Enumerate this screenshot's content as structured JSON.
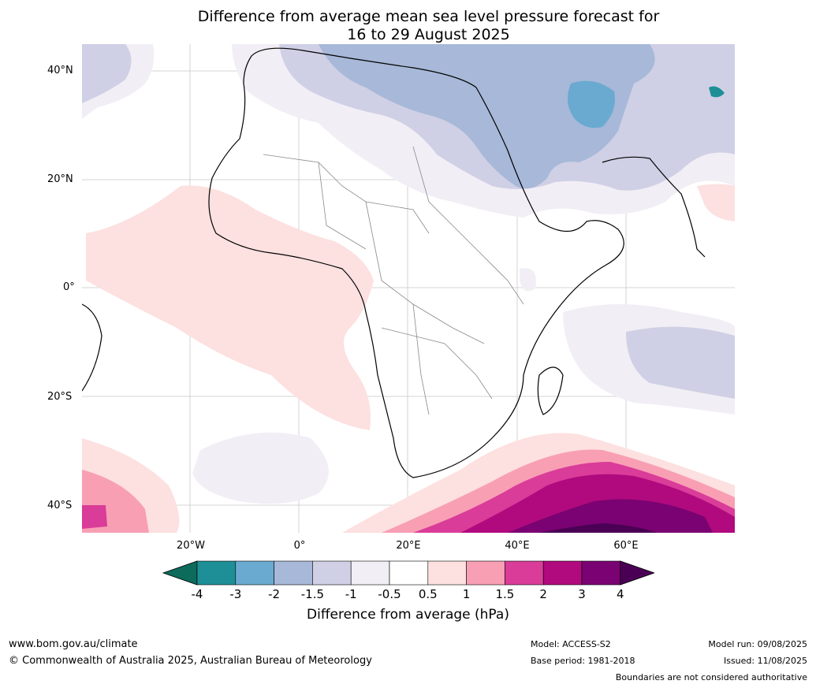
{
  "title_line1": "Difference from average mean sea level pressure forecast for",
  "title_line2": "16 to 29 August 2025",
  "lat_labels": [
    "40°N",
    "20°N",
    "0°",
    "20°S",
    "40°S"
  ],
  "lon_labels": [
    "20°W",
    "0°",
    "20°E",
    "40°E",
    "60°E"
  ],
  "colorbar": {
    "ticks": [
      "-4",
      "-3",
      "-2",
      "-1.5",
      "-1",
      "-0.5",
      "0.5",
      "1",
      "1.5",
      "2",
      "3",
      "4"
    ],
    "colors": [
      "#0d6b5c",
      "#1e8f96",
      "#6aaad0",
      "#a7b8d8",
      "#cfd0e5",
      "#f2eef5",
      "#ffffff",
      "#fde0e0",
      "#f89fb4",
      "#da3c99",
      "#b00a7e",
      "#7a0272",
      "#4a0054"
    ],
    "label": "Difference from average (hPa)"
  },
  "footer": {
    "website": "www.bom.gov.au/climate",
    "copyright": "© Commonwealth of Australia 2025, Australian Bureau of Meteorology",
    "model": "Model: ACCESS-S2",
    "base_period": "Base period: 1981-2018",
    "model_run": "Model run: 09/08/2025",
    "issued": "Issued: 11/08/2025",
    "disclaimer": "Boundaries are not considered authoritative"
  }
}
